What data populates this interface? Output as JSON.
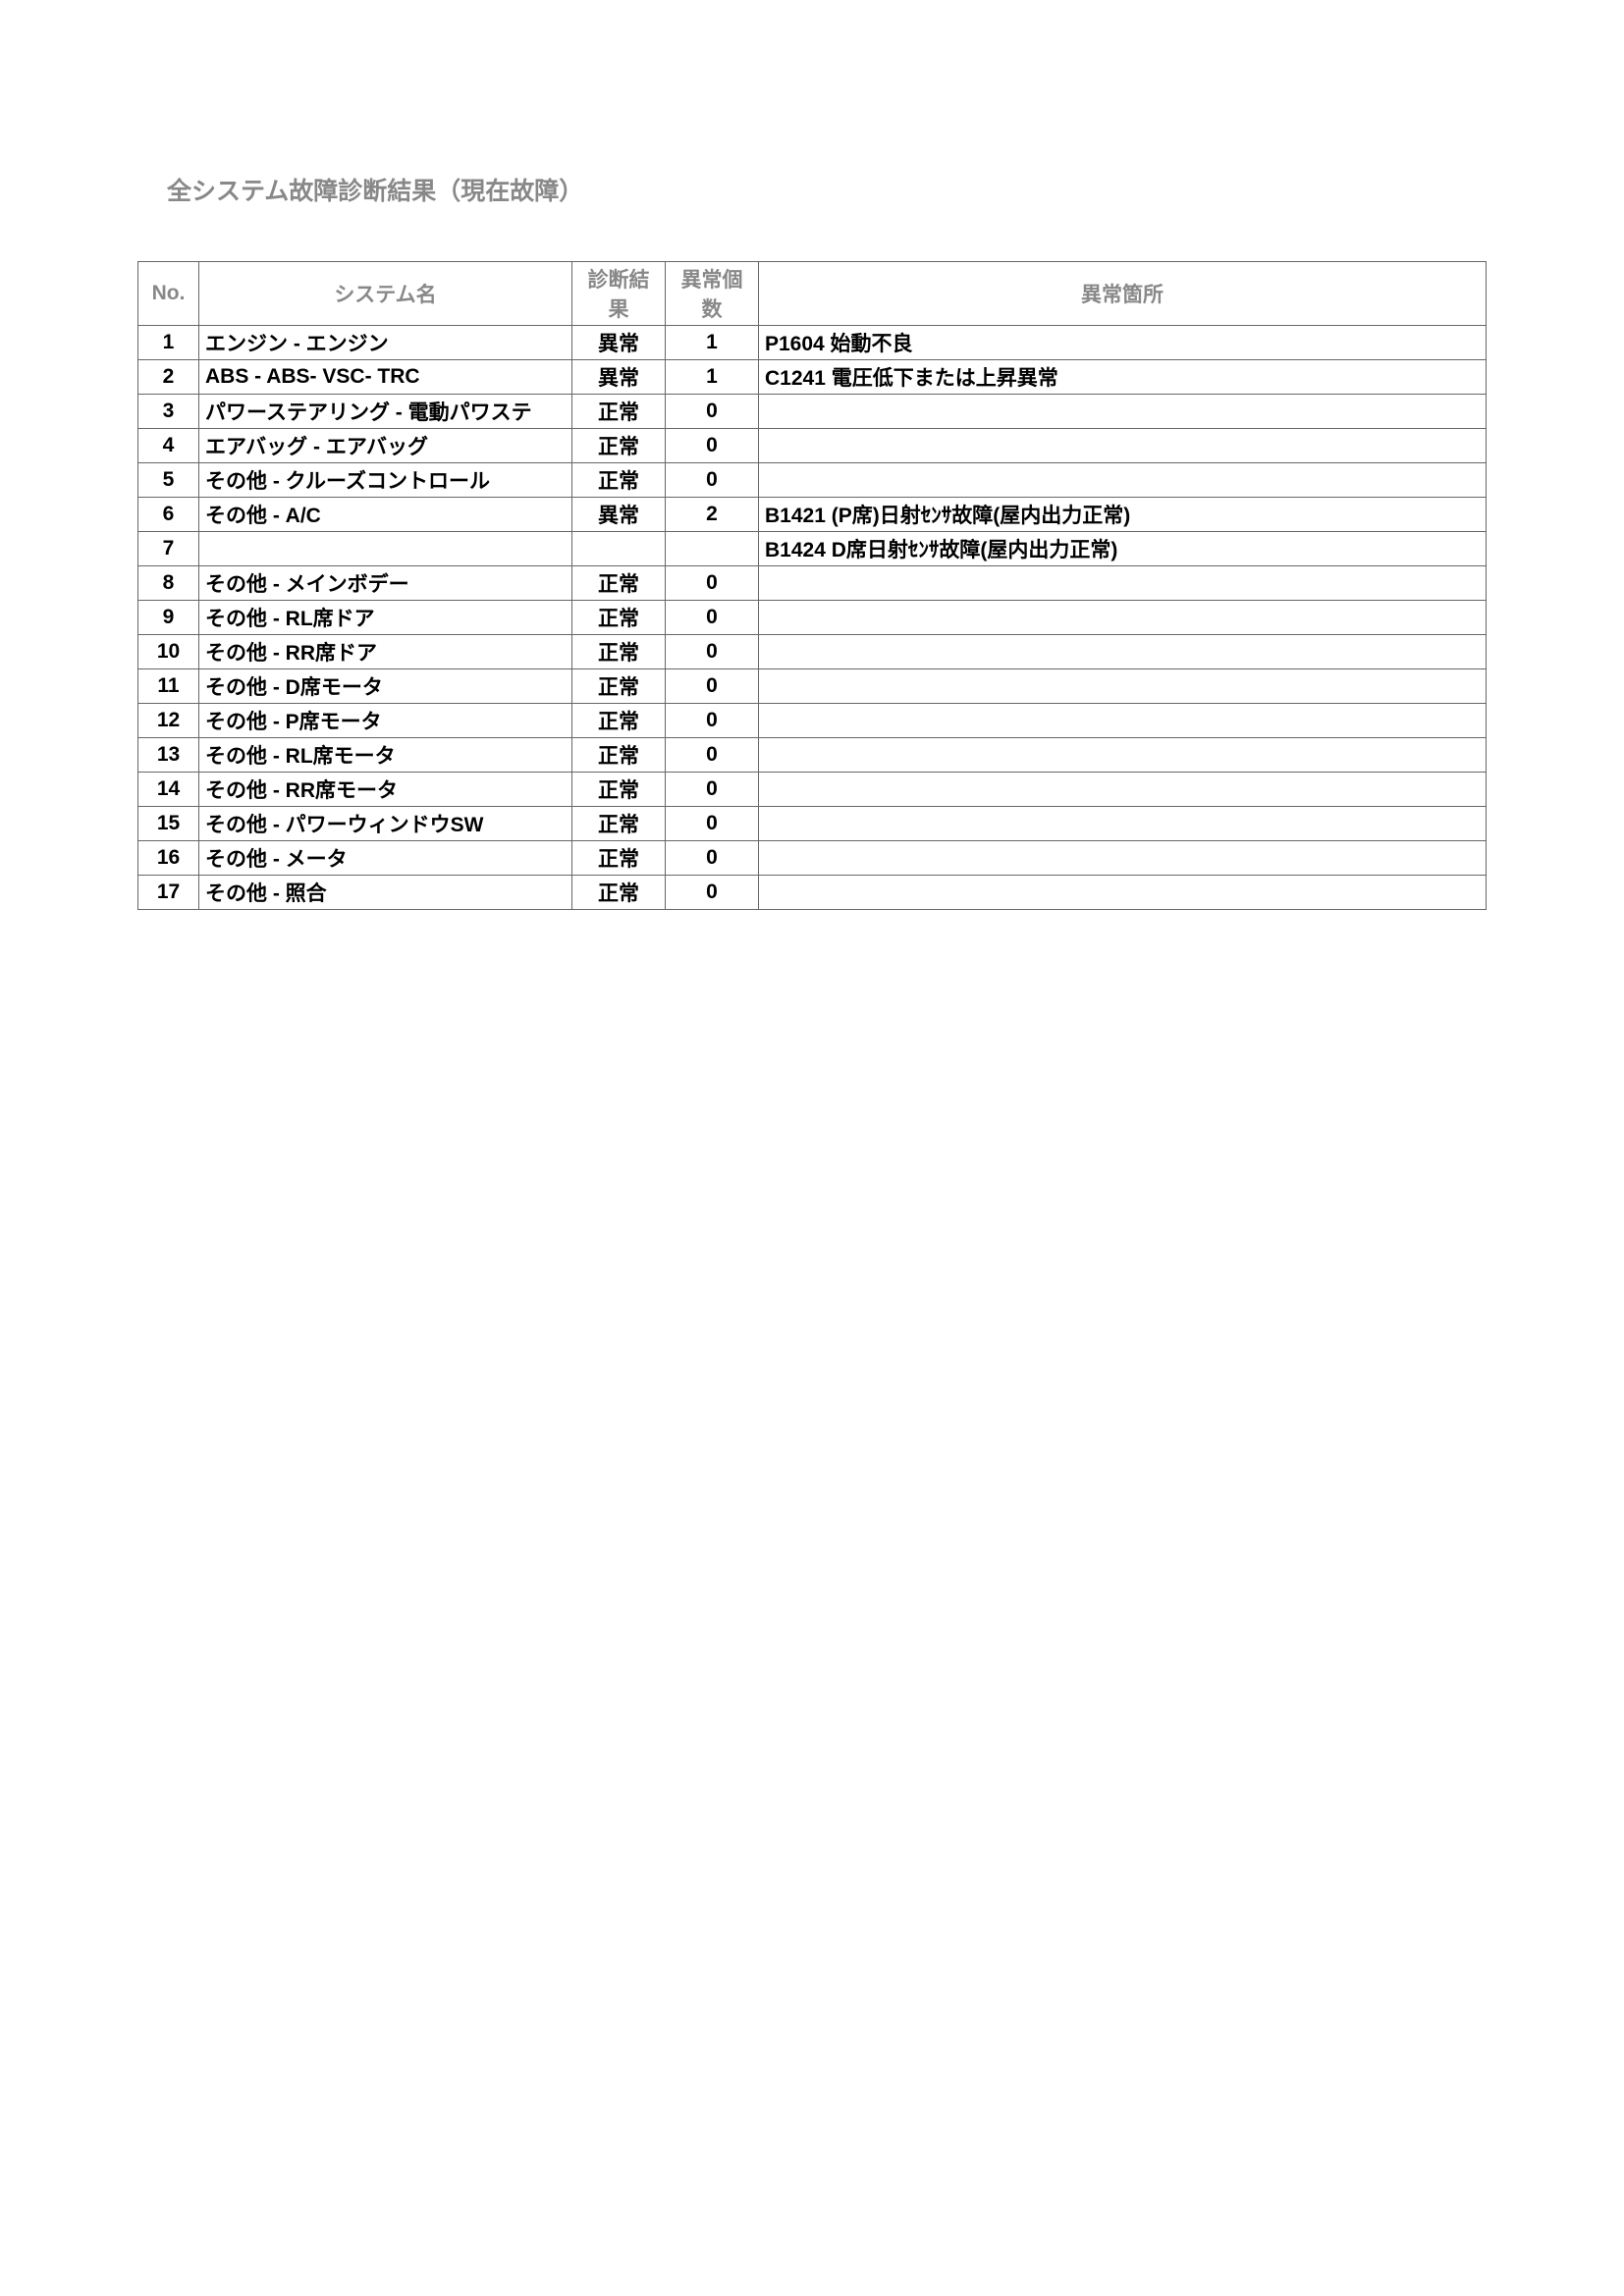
{
  "title": "全システム故障診断結果（現在故障）",
  "headers": {
    "no": "No.",
    "system": "システム名",
    "result": "診断結果",
    "count": "異常個数",
    "location": "異常箇所"
  },
  "rows": [
    {
      "no": "1",
      "system": "エンジン - エンジン",
      "result": "異常",
      "count": "1",
      "location": "P1604 始動不良"
    },
    {
      "no": "2",
      "system": "ABS - ABS- VSC- TRC",
      "result": "異常",
      "count": "1",
      "location": "C1241 電圧低下または上昇異常"
    },
    {
      "no": "3",
      "system": "パワーステアリング - 電動パワステ",
      "result": "正常",
      "count": "0",
      "location": ""
    },
    {
      "no": "4",
      "system": "エアバッグ - エアバッグ",
      "result": "正常",
      "count": "0",
      "location": ""
    },
    {
      "no": "5",
      "system": "その他 - クルーズコントロール",
      "result": "正常",
      "count": "0",
      "location": ""
    },
    {
      "no": "6",
      "system": "その他 - A/C",
      "result": "異常",
      "count": "2",
      "location": "B1421 (P席)日射ｾﾝｻ故障(屋内出力正常)"
    },
    {
      "no": "7",
      "system": "",
      "result": "",
      "count": "",
      "location": "B1424 D席日射ｾﾝｻ故障(屋内出力正常)"
    },
    {
      "no": "8",
      "system": "その他 - メインボデー",
      "result": "正常",
      "count": "0",
      "location": ""
    },
    {
      "no": "9",
      "system": "その他 - RL席ドア",
      "result": "正常",
      "count": "0",
      "location": ""
    },
    {
      "no": "10",
      "system": "その他 - RR席ドア",
      "result": "正常",
      "count": "0",
      "location": ""
    },
    {
      "no": "11",
      "system": "その他 - D席モータ",
      "result": "正常",
      "count": "0",
      "location": ""
    },
    {
      "no": "12",
      "system": "その他 - P席モータ",
      "result": "正常",
      "count": "0",
      "location": ""
    },
    {
      "no": "13",
      "system": "その他 - RL席モータ",
      "result": "正常",
      "count": "0",
      "location": ""
    },
    {
      "no": "14",
      "system": "その他 - RR席モータ",
      "result": "正常",
      "count": "0",
      "location": ""
    },
    {
      "no": "15",
      "system": "その他 - パワーウィンドウSW",
      "result": "正常",
      "count": "0",
      "location": ""
    },
    {
      "no": "16",
      "system": "その他 - メータ",
      "result": "正常",
      "count": "0",
      "location": ""
    },
    {
      "no": "17",
      "system": "その他 - 照合",
      "result": "正常",
      "count": "0",
      "location": ""
    }
  ]
}
